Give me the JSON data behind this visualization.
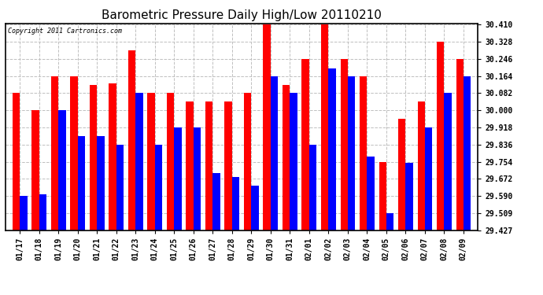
{
  "title": "Barometric Pressure Daily High/Low 20110210",
  "copyright": "Copyright 2011 Cartronics.com",
  "dates": [
    "01/17",
    "01/18",
    "01/19",
    "01/20",
    "01/21",
    "01/22",
    "01/23",
    "01/24",
    "01/25",
    "01/26",
    "01/27",
    "01/28",
    "01/29",
    "01/30",
    "01/31",
    "02/01",
    "02/02",
    "02/03",
    "02/04",
    "02/05",
    "02/06",
    "02/07",
    "02/08",
    "02/09"
  ],
  "highs": [
    30.082,
    30.0,
    30.164,
    30.164,
    30.123,
    30.13,
    30.287,
    30.082,
    30.082,
    30.041,
    30.041,
    30.041,
    30.082,
    30.41,
    30.123,
    30.246,
    30.41,
    30.246,
    30.164,
    29.754,
    29.959,
    30.041,
    30.328,
    30.246
  ],
  "lows": [
    29.59,
    29.6,
    30.0,
    29.877,
    29.877,
    29.836,
    30.082,
    29.836,
    29.918,
    29.918,
    29.7,
    29.68,
    29.64,
    30.164,
    30.082,
    29.836,
    30.2,
    30.164,
    29.78,
    29.509,
    29.75,
    29.918,
    30.082,
    30.164
  ],
  "ymin": 29.427,
  "ymax": 30.41,
  "yticks": [
    29.427,
    29.509,
    29.59,
    29.672,
    29.754,
    29.836,
    29.918,
    30.0,
    30.082,
    30.164,
    30.246,
    30.328,
    30.41
  ],
  "bar_width": 0.38,
  "high_color": "#FF0000",
  "low_color": "#0000FF",
  "bg_color": "#FFFFFF",
  "grid_color": "#C0C0C0",
  "title_fontsize": 11,
  "tick_fontsize": 7,
  "copyright_fontsize": 6
}
